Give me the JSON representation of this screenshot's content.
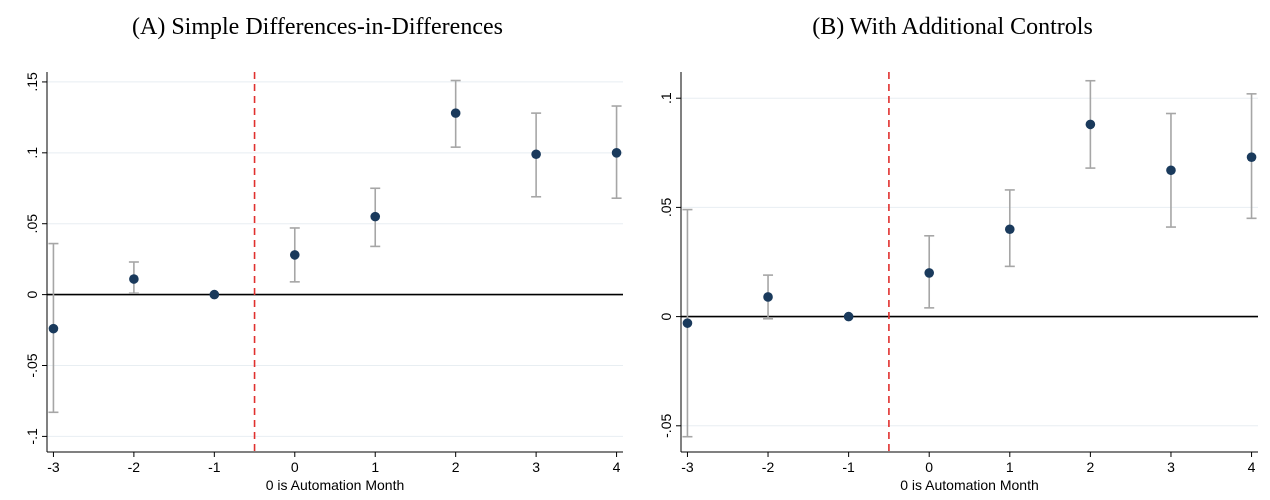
{
  "chart_data": [
    {
      "type": "scatter",
      "title": "(A) Simple Differences-in-Differences",
      "xlabel": "0 is Automation Month",
      "ylabel": "",
      "x_ticks": [
        -3,
        -2,
        -1,
        0,
        1,
        2,
        3,
        4
      ],
      "x_tick_labels": [
        "-3",
        "-2",
        "-1",
        "0",
        "1",
        "2",
        "3",
        "4"
      ],
      "y_ticks": [
        -0.1,
        -0.05,
        0,
        0.05,
        0.1,
        0.15
      ],
      "y_tick_labels": [
        "-.1",
        "-.05",
        "0",
        ".05",
        ".1",
        ".15"
      ],
      "xlim": [
        -3.08,
        4.08
      ],
      "ylim": [
        -0.111,
        0.157
      ],
      "grid": true,
      "reference_line_x": -0.5,
      "zero_line_y": 0,
      "marker_color": "#1a3a5c",
      "ci_color": "#a6a6a6",
      "ref_line_color": "#e0302e",
      "series": [
        {
          "x": [
            -3,
            -2,
            -1,
            0,
            1,
            2,
            3,
            4
          ],
          "values": [
            -0.024,
            0.011,
            0.0,
            0.028,
            0.055,
            0.128,
            0.099,
            0.1
          ],
          "ci_low": [
            -0.083,
            0.001,
            0.0,
            0.009,
            0.034,
            0.104,
            0.069,
            0.068
          ],
          "ci_high": [
            0.036,
            0.023,
            0.0,
            0.047,
            0.075,
            0.151,
            0.128,
            0.133
          ]
        }
      ]
    },
    {
      "type": "scatter",
      "title": "(B) With Additional Controls",
      "xlabel": "0 is Automation Month",
      "ylabel": "",
      "x_ticks": [
        -3,
        -2,
        -1,
        0,
        1,
        2,
        3,
        4
      ],
      "x_tick_labels": [
        "-3",
        "-2",
        "-1",
        "0",
        "1",
        "2",
        "3",
        "4"
      ],
      "y_ticks": [
        -0.05,
        0,
        0.05,
        0.1
      ],
      "y_tick_labels": [
        "-.05",
        "0",
        ".05",
        ".1"
      ],
      "xlim": [
        -3.08,
        4.08
      ],
      "ylim": [
        -0.062,
        0.112
      ],
      "grid": true,
      "reference_line_x": -0.5,
      "zero_line_y": 0,
      "marker_color": "#1a3a5c",
      "ci_color": "#a6a6a6",
      "ref_line_color": "#e0302e",
      "series": [
        {
          "x": [
            -3,
            -2,
            -1,
            0,
            1,
            2,
            3,
            4
          ],
          "values": [
            -0.003,
            0.009,
            0.0,
            0.02,
            0.04,
            0.088,
            0.067,
            0.073
          ],
          "ci_low": [
            -0.055,
            -0.001,
            0.0,
            0.004,
            0.023,
            0.068,
            0.041,
            0.045
          ],
          "ci_high": [
            0.049,
            0.019,
            0.0,
            0.037,
            0.058,
            0.108,
            0.093,
            0.102
          ]
        }
      ]
    }
  ]
}
